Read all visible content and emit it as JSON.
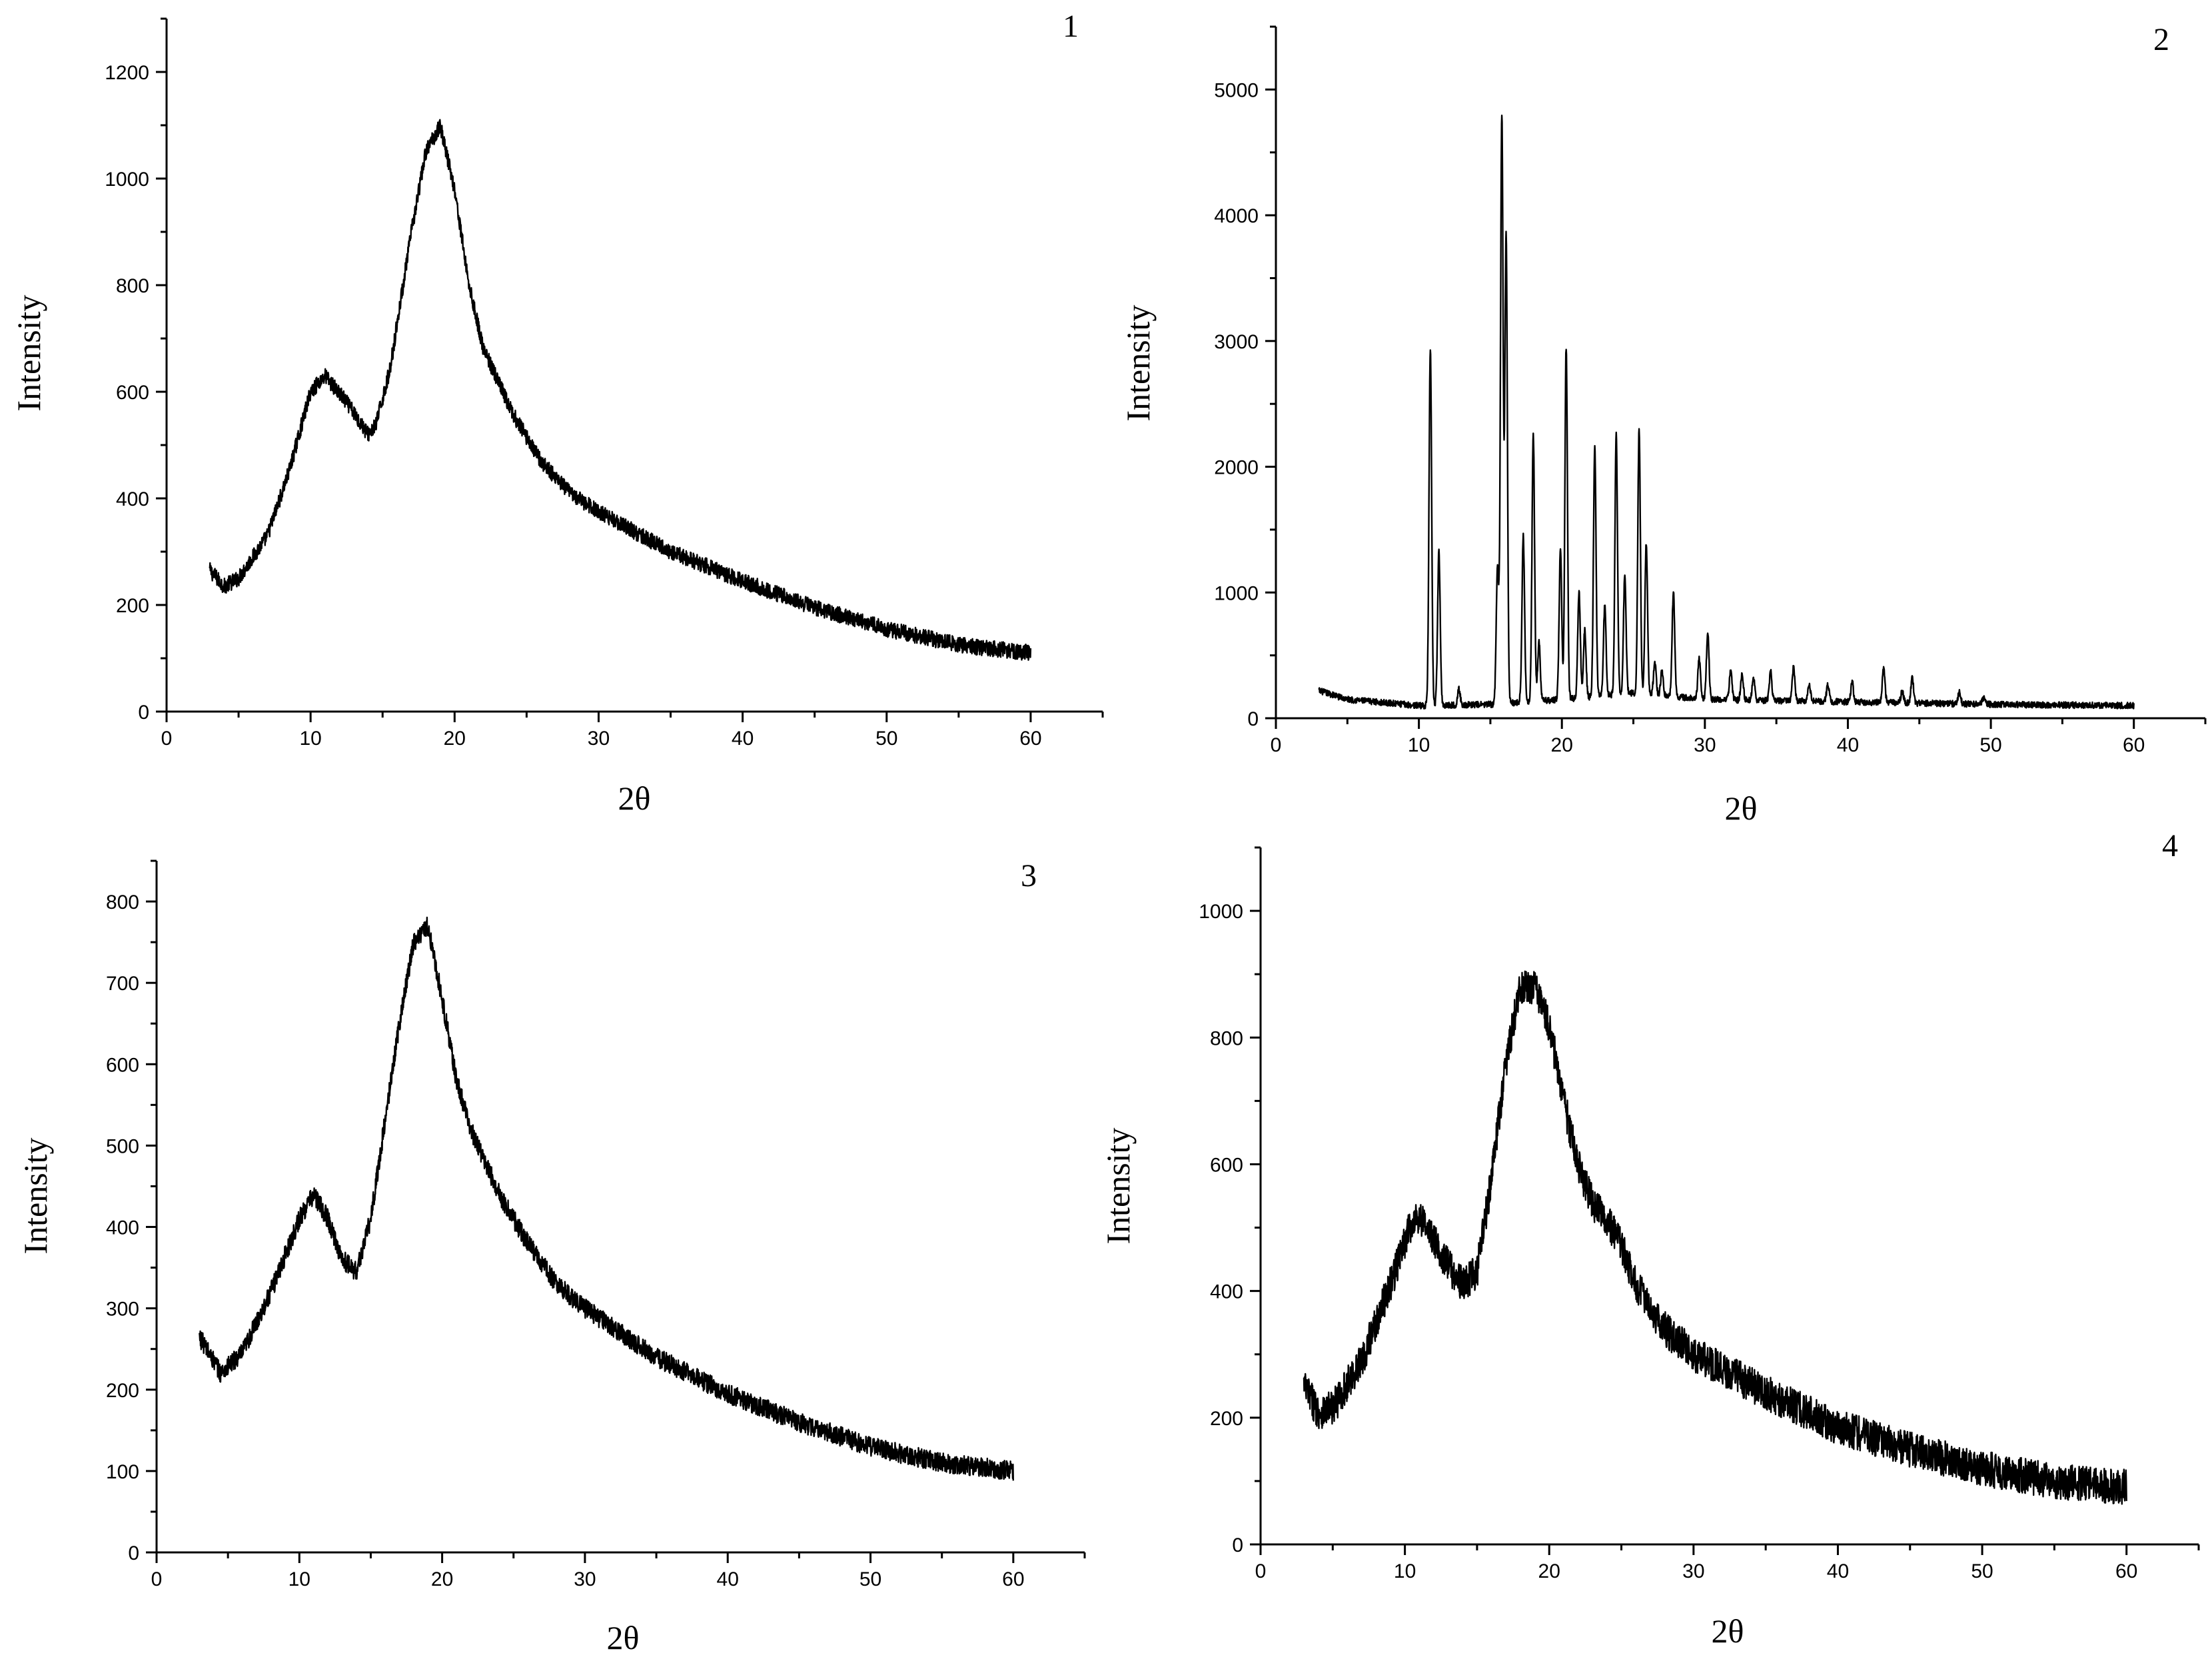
{
  "chart_data": [
    {
      "type": "line",
      "panel_label": "1",
      "xlabel": "2θ",
      "ylabel": "Intensity",
      "xlim": [
        0,
        65
      ],
      "ylim": [
        0,
        1300
      ],
      "xticks": [
        0,
        10,
        20,
        30,
        40,
        50,
        60
      ],
      "yticks": [
        0,
        200,
        400,
        600,
        800,
        1000,
        1200
      ],
      "grid": false,
      "noise_amplitude": 15,
      "x": [
        3,
        4,
        5,
        7,
        8.5,
        10,
        11,
        12.5,
        14,
        14.5,
        15.5,
        17,
        18,
        19,
        20,
        21,
        22,
        24,
        26,
        28,
        30,
        35,
        40,
        45,
        50,
        55,
        60
      ],
      "y": [
        265,
        235,
        250,
        330,
        450,
        600,
        630,
        580,
        520,
        535,
        640,
        900,
        1050,
        1100,
        980,
        800,
        680,
        560,
        470,
        410,
        375,
        300,
        245,
        195,
        155,
        125,
        110
      ]
    },
    {
      "type": "line",
      "panel_label": "2",
      "xlabel": "2θ",
      "ylabel": "Intensity",
      "xlim": [
        0,
        65
      ],
      "ylim": [
        0,
        5500
      ],
      "xticks": [
        0,
        10,
        20,
        30,
        40,
        50,
        60
      ],
      "yticks": [
        0,
        1000,
        2000,
        3000,
        4000,
        5000
      ],
      "grid": false,
      "noise_amplitude": 25,
      "baseline": {
        "x": [
          3,
          5,
          8,
          10,
          15,
          20,
          25,
          30,
          40,
          50,
          60
        ],
        "y": [
          220,
          150,
          120,
          100,
          110,
          150,
          200,
          150,
          130,
          110,
          100
        ]
      },
      "peaks": [
        {
          "x": 10.8,
          "y": 2950
        },
        {
          "x": 11.4,
          "y": 1320
        },
        {
          "x": 12.8,
          "y": 230
        },
        {
          "x": 15.5,
          "y": 1200
        },
        {
          "x": 15.8,
          "y": 4800
        },
        {
          "x": 16.1,
          "y": 3850
        },
        {
          "x": 17.3,
          "y": 1450
        },
        {
          "x": 18.0,
          "y": 2250
        },
        {
          "x": 18.4,
          "y": 600
        },
        {
          "x": 19.9,
          "y": 1350
        },
        {
          "x": 20.3,
          "y": 2950
        },
        {
          "x": 21.2,
          "y": 1000
        },
        {
          "x": 21.6,
          "y": 700
        },
        {
          "x": 22.3,
          "y": 2150
        },
        {
          "x": 23.0,
          "y": 900
        },
        {
          "x": 23.8,
          "y": 2250
        },
        {
          "x": 24.4,
          "y": 1150
        },
        {
          "x": 25.4,
          "y": 2300
        },
        {
          "x": 25.9,
          "y": 1400
        },
        {
          "x": 26.5,
          "y": 450
        },
        {
          "x": 27.0,
          "y": 380
        },
        {
          "x": 27.8,
          "y": 1000
        },
        {
          "x": 29.6,
          "y": 480
        },
        {
          "x": 30.2,
          "y": 680
        },
        {
          "x": 31.8,
          "y": 380
        },
        {
          "x": 32.6,
          "y": 350
        },
        {
          "x": 33.4,
          "y": 330
        },
        {
          "x": 34.6,
          "y": 370
        },
        {
          "x": 36.2,
          "y": 400
        },
        {
          "x": 37.3,
          "y": 270
        },
        {
          "x": 38.6,
          "y": 260
        },
        {
          "x": 40.3,
          "y": 290
        },
        {
          "x": 42.5,
          "y": 400
        },
        {
          "x": 43.8,
          "y": 220
        },
        {
          "x": 44.5,
          "y": 320
        },
        {
          "x": 47.8,
          "y": 210
        },
        {
          "x": 49.5,
          "y": 160
        }
      ]
    },
    {
      "type": "line",
      "panel_label": "3",
      "xlabel": "2θ",
      "ylabel": "Intensity",
      "xlim": [
        0,
        65
      ],
      "ylim": [
        0,
        850
      ],
      "xticks": [
        0,
        10,
        20,
        30,
        40,
        50,
        60
      ],
      "yticks": [
        0,
        100,
        200,
        300,
        400,
        500,
        600,
        700,
        800
      ],
      "grid": false,
      "noise_amplitude": 12,
      "x": [
        3,
        4.5,
        6,
        8,
        10,
        11,
        12,
        13,
        14,
        15,
        16,
        17,
        18,
        19,
        20,
        21,
        22,
        24,
        26,
        28,
        30,
        35,
        40,
        45,
        50,
        55,
        60
      ],
      "y": [
        265,
        220,
        245,
        320,
        410,
        440,
        410,
        360,
        345,
        410,
        530,
        650,
        750,
        770,
        680,
        580,
        520,
        440,
        380,
        330,
        300,
        240,
        195,
        160,
        130,
        110,
        100
      ]
    },
    {
      "type": "line",
      "panel_label": "4",
      "xlabel": "2θ",
      "ylabel": "Intensity",
      "xlim": [
        0,
        65
      ],
      "ylim": [
        0,
        1100
      ],
      "xticks": [
        0,
        10,
        20,
        30,
        40,
        50,
        60
      ],
      "yticks": [
        0,
        200,
        400,
        600,
        800,
        1000
      ],
      "grid": false,
      "noise_amplitude": 28,
      "x": [
        3,
        4,
        5,
        7,
        9,
        10.5,
        11,
        12,
        13,
        14,
        15,
        16,
        17,
        18,
        19,
        20,
        21,
        22,
        23,
        24,
        25,
        26,
        28,
        30,
        35,
        40,
        45,
        50,
        55,
        60
      ],
      "y": [
        250,
        210,
        215,
        290,
        410,
        510,
        520,
        480,
        440,
        410,
        430,
        580,
        760,
        880,
        880,
        820,
        700,
        600,
        540,
        510,
        470,
        410,
        340,
        300,
        240,
        185,
        150,
        120,
        100,
        90
      ]
    }
  ]
}
